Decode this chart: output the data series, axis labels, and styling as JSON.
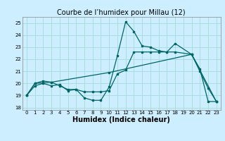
{
  "title": "Courbe de l’humidex pour Millau (12)",
  "xlabel": "Humidex (Indice chaleur)",
  "bg_color": "#cceeff",
  "grid_color": "#aadddd",
  "line_color": "#006666",
  "xlim": [
    -0.5,
    23.5
  ],
  "ylim": [
    17.8,
    25.5
  ],
  "yticks": [
    18,
    19,
    20,
    21,
    22,
    23,
    24,
    25
  ],
  "xticks": [
    0,
    1,
    2,
    3,
    4,
    5,
    6,
    7,
    8,
    9,
    10,
    11,
    12,
    13,
    14,
    15,
    16,
    17,
    18,
    19,
    20,
    21,
    22,
    23
  ],
  "series": [
    {
      "x": [
        0,
        1,
        2,
        3,
        4,
        5,
        6,
        7,
        8,
        9,
        10,
        11,
        12,
        13,
        14,
        15,
        16,
        17,
        18,
        20,
        21,
        22,
        23
      ],
      "y": [
        19.0,
        19.8,
        20.0,
        19.8,
        19.9,
        19.4,
        19.5,
        18.8,
        18.6,
        18.6,
        19.7,
        22.3,
        25.1,
        24.3,
        23.1,
        23.0,
        22.7,
        22.6,
        23.3,
        22.4,
        21.0,
        19.6,
        18.5
      ]
    },
    {
      "x": [
        0,
        1,
        2,
        3,
        4,
        5,
        6,
        7,
        8,
        9,
        10,
        11,
        12,
        13,
        14,
        15,
        16,
        17,
        18,
        20,
        21,
        22,
        23
      ],
      "y": [
        19.0,
        20.0,
        20.2,
        20.1,
        19.8,
        19.5,
        19.5,
        19.3,
        19.3,
        19.3,
        19.4,
        20.8,
        21.1,
        22.6,
        22.6,
        22.6,
        22.6,
        22.6,
        22.6,
        22.4,
        21.2,
        18.5,
        18.5
      ]
    },
    {
      "x": [
        0,
        1,
        3,
        10,
        20,
        23
      ],
      "y": [
        19.0,
        20.0,
        20.1,
        20.9,
        22.4,
        18.5
      ]
    }
  ],
  "title_fontsize": 7,
  "tick_fontsize": 5,
  "label_fontsize": 7
}
